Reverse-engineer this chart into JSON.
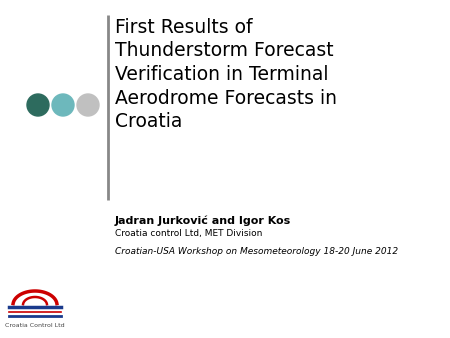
{
  "title_line1": "First Results of",
  "title_line2": "Thunderstorm Forecast",
  "title_line3": "Verification in Terminal",
  "title_line4": "Aerodrome Forecasts in",
  "title_line5": "Croatia",
  "author_bold": "Jadran Jurković and Igor Kos",
  "author_affil": "Croatia control Ltd, MET Division",
  "workshop": "Croatian-USA Workshop on Mesometeorology 18-20 June 2012",
  "logo_text": "Croatia Control Ltd",
  "background_color": "#ffffff",
  "title_color": "#000000",
  "bar_color": "#777777",
  "dot_colors": [
    "#2d6b5e",
    "#6db8bc",
    "#c0c0c0"
  ],
  "title_fontsize": 13.5,
  "author_fontsize": 8,
  "affil_fontsize": 6.5,
  "workshop_fontsize": 6.5
}
